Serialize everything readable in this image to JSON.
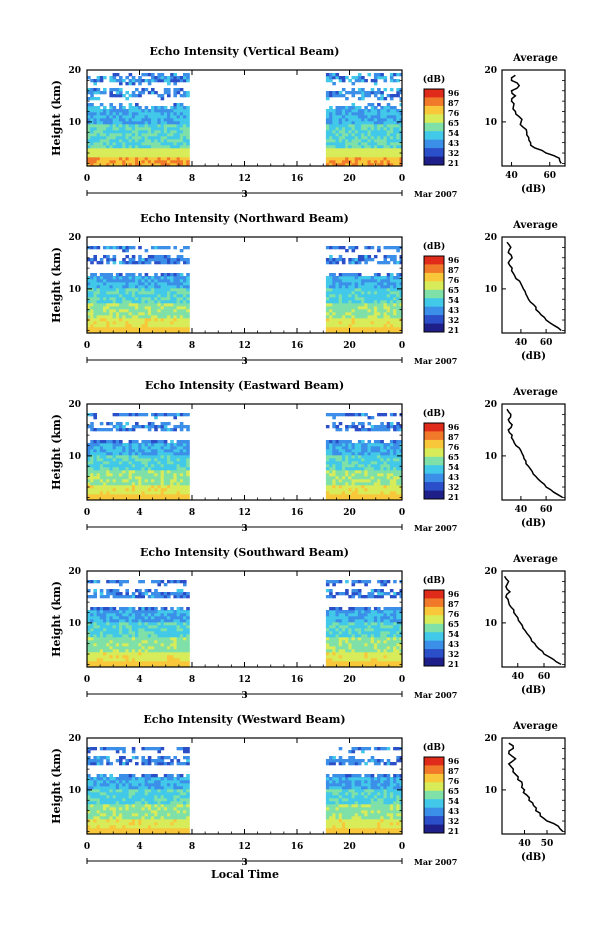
{
  "figure": {
    "bottom_axis_label": "Local Time",
    "date_label": "Mar 2007",
    "day_label": "3",
    "colorbar": {
      "unit": "(dB)",
      "ticks": [
        "96",
        "87",
        "76",
        "65",
        "54",
        "43",
        "32",
        "21"
      ],
      "colors": [
        "#1f1f8a",
        "#2b4fc8",
        "#3c8fe8",
        "#42c8e8",
        "#7fe0a8",
        "#d8ec5a",
        "#f8c83a",
        "#f07a2a",
        "#e02a1a"
      ]
    },
    "heatmap_colors": {
      "low": "#2b4fc8",
      "mid_low": "#3c8fe8",
      "mid": "#42c8e8",
      "mid_high": "#7fe0a8",
      "high": "#d8ec5a",
      "very_high": "#f8c83a",
      "peak": "#f07a2a"
    }
  },
  "chart_data": [
    {
      "type": "heatmap",
      "title": "Echo Intensity (Vertical Beam)",
      "ylabel": "Height (km)",
      "xlabel": "Local Time",
      "x_ticks": [
        "0",
        "4",
        "8",
        "12",
        "16",
        "20",
        "0"
      ],
      "xlim": [
        0,
        24
      ],
      "y_ticks": [
        "20",
        "10"
      ],
      "ylim": [
        1.5,
        20
      ],
      "data_intervals_hours": [
        [
          0,
          7.8
        ],
        [
          18.2,
          24
        ]
      ],
      "no_data_interval_hours": [
        7.8,
        18.2
      ],
      "echo_top_km": 20,
      "profile_title": "Average",
      "profile_xlabel": "(dB)",
      "profile_x_ticks": [
        "40",
        "60"
      ],
      "profile_xlim": [
        35,
        68
      ],
      "profile": {
        "height_km": [
          2,
          3,
          4,
          5,
          6,
          7,
          8,
          9,
          10,
          11,
          12,
          13,
          14,
          15,
          16,
          17,
          18,
          19
        ],
        "db": [
          66,
          65,
          58,
          52,
          50,
          49,
          48,
          46,
          45,
          44,
          42,
          41,
          40,
          42,
          40,
          44,
          40,
          42
        ]
      }
    },
    {
      "type": "heatmap",
      "title": "Echo Intensity (Northward Beam)",
      "ylabel": "Height (km)",
      "xlabel": "Local Time",
      "x_ticks": [
        "0",
        "4",
        "8",
        "12",
        "16",
        "20",
        "0"
      ],
      "xlim": [
        0,
        24
      ],
      "y_ticks": [
        "20",
        "10"
      ],
      "ylim": [
        1.5,
        20
      ],
      "data_intervals_hours": [
        [
          0,
          7.8
        ],
        [
          18.2,
          24
        ]
      ],
      "no_data_interval_hours": [
        7.8,
        18.2
      ],
      "echo_top_km": 18.3,
      "profile_title": "Average",
      "profile_xlabel": "(dB)",
      "profile_x_ticks": [
        "40",
        "60"
      ],
      "profile_xlim": [
        25,
        75
      ],
      "profile": {
        "height_km": [
          2,
          3,
          4,
          5,
          6,
          7,
          8,
          9,
          10,
          11,
          12,
          13,
          14,
          15,
          16,
          17,
          18,
          19
        ],
        "db": [
          72,
          66,
          60,
          56,
          52,
          50,
          46,
          44,
          42,
          40,
          36,
          34,
          33,
          30,
          33,
          30,
          32,
          29
        ]
      }
    },
    {
      "type": "heatmap",
      "title": "Echo Intensity (Eastward Beam)",
      "ylabel": "Height (km)",
      "xlabel": "Local Time",
      "x_ticks": [
        "0",
        "4",
        "8",
        "12",
        "16",
        "20",
        "0"
      ],
      "xlim": [
        0,
        24
      ],
      "y_ticks": [
        "20",
        "10"
      ],
      "ylim": [
        1.5,
        20
      ],
      "data_intervals_hours": [
        [
          0,
          7.8
        ],
        [
          18.2,
          24
        ]
      ],
      "no_data_interval_hours": [
        7.8,
        18.2
      ],
      "echo_top_km": 18.3,
      "profile_title": "Average",
      "profile_xlabel": "(dB)",
      "profile_x_ticks": [
        "40",
        "60"
      ],
      "profile_xlim": [
        25,
        75
      ],
      "profile": {
        "height_km": [
          2,
          3,
          4,
          5,
          6,
          7,
          8,
          9,
          10,
          11,
          12,
          13,
          14,
          15,
          16,
          17,
          18,
          19
        ],
        "db": [
          73,
          66,
          60,
          56,
          52,
          49,
          46,
          44,
          42,
          40,
          36,
          34,
          33,
          30,
          33,
          30,
          32,
          29
        ]
      }
    },
    {
      "type": "heatmap",
      "title": "Echo Intensity (Southward Beam)",
      "ylabel": "Height (km)",
      "xlabel": "Local Time",
      "x_ticks": [
        "0",
        "4",
        "8",
        "12",
        "16",
        "20",
        "0"
      ],
      "xlim": [
        0,
        24
      ],
      "y_ticks": [
        "20",
        "10"
      ],
      "ylim": [
        1.5,
        20
      ],
      "data_intervals_hours": [
        [
          0,
          7.8
        ],
        [
          18.2,
          24
        ]
      ],
      "no_data_interval_hours": [
        7.8,
        18.2
      ],
      "echo_top_km": 18.3,
      "profile_title": "Average",
      "profile_xlabel": "(dB)",
      "profile_x_ticks": [
        "40",
        "60"
      ],
      "profile_xlim": [
        28,
        76
      ],
      "profile": {
        "height_km": [
          2,
          3,
          4,
          5,
          6,
          7,
          8,
          9,
          10,
          11,
          12,
          13,
          14,
          15,
          16,
          17,
          18,
          19
        ],
        "db": [
          73,
          67,
          60,
          56,
          53,
          50,
          47,
          44,
          42,
          40,
          37,
          35,
          33,
          31,
          34,
          31,
          33,
          30
        ]
      }
    },
    {
      "type": "heatmap",
      "title": "Echo Intensity (Westward Beam)",
      "ylabel": "Height (km)",
      "xlabel": "Local Time",
      "x_ticks": [
        "0",
        "4",
        "8",
        "12",
        "16",
        "20",
        "0"
      ],
      "xlim": [
        0,
        24
      ],
      "y_ticks": [
        "20",
        "10"
      ],
      "ylim": [
        1.5,
        20
      ],
      "data_intervals_hours": [
        [
          0,
          7.8
        ],
        [
          18.2,
          24
        ]
      ],
      "no_data_interval_hours": [
        7.8,
        18.2
      ],
      "echo_top_km": 18.3,
      "profile_title": "Average",
      "profile_xlabel": "(dB)",
      "profile_x_ticks": [
        "40",
        "50"
      ],
      "profile_xlim": [
        30,
        58
      ],
      "profile": {
        "height_km": [
          2,
          3,
          4,
          5,
          6,
          7,
          8,
          9,
          10,
          11,
          12,
          13,
          14,
          15,
          16,
          17,
          18,
          19
        ],
        "db": [
          57,
          55,
          50,
          47,
          45,
          44,
          42,
          41,
          40,
          39,
          37,
          36,
          35,
          33,
          36,
          33,
          35,
          33
        ]
      }
    }
  ]
}
